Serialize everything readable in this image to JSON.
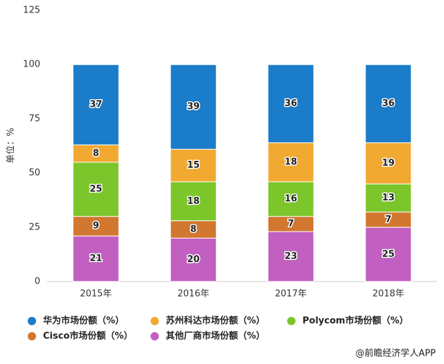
{
  "chart_data": {
    "type": "stacked_bar",
    "y_label": "单位：%",
    "categories": [
      "2015年",
      "2016年",
      "2017年",
      "2018年"
    ],
    "series": [
      {
        "name": "华为市场份额（%）",
        "color": "#1b7cc9",
        "values": [
          37,
          39,
          36,
          36
        ]
      },
      {
        "name": "苏州科达市场份额（%）",
        "color": "#f1a931",
        "values": [
          8,
          15,
          18,
          19
        ]
      },
      {
        "name": "Polycom市场份额（%）",
        "color": "#7cc62b",
        "values": [
          25,
          18,
          16,
          13
        ]
      },
      {
        "name": "Cisco市场份额（%）",
        "color": "#d2772f",
        "values": [
          9,
          8,
          7,
          7
        ]
      },
      {
        "name": "其他厂商市场份额（%）",
        "color": "#c160c0",
        "values": [
          21,
          20,
          23,
          25
        ]
      }
    ],
    "stack_order": "bottom-up-from-last",
    "ylim": [
      0,
      125
    ],
    "yticks": [
      0,
      25,
      50,
      75,
      100,
      125
    ],
    "grid": false,
    "source": "@前瞻经济学人APP"
  }
}
